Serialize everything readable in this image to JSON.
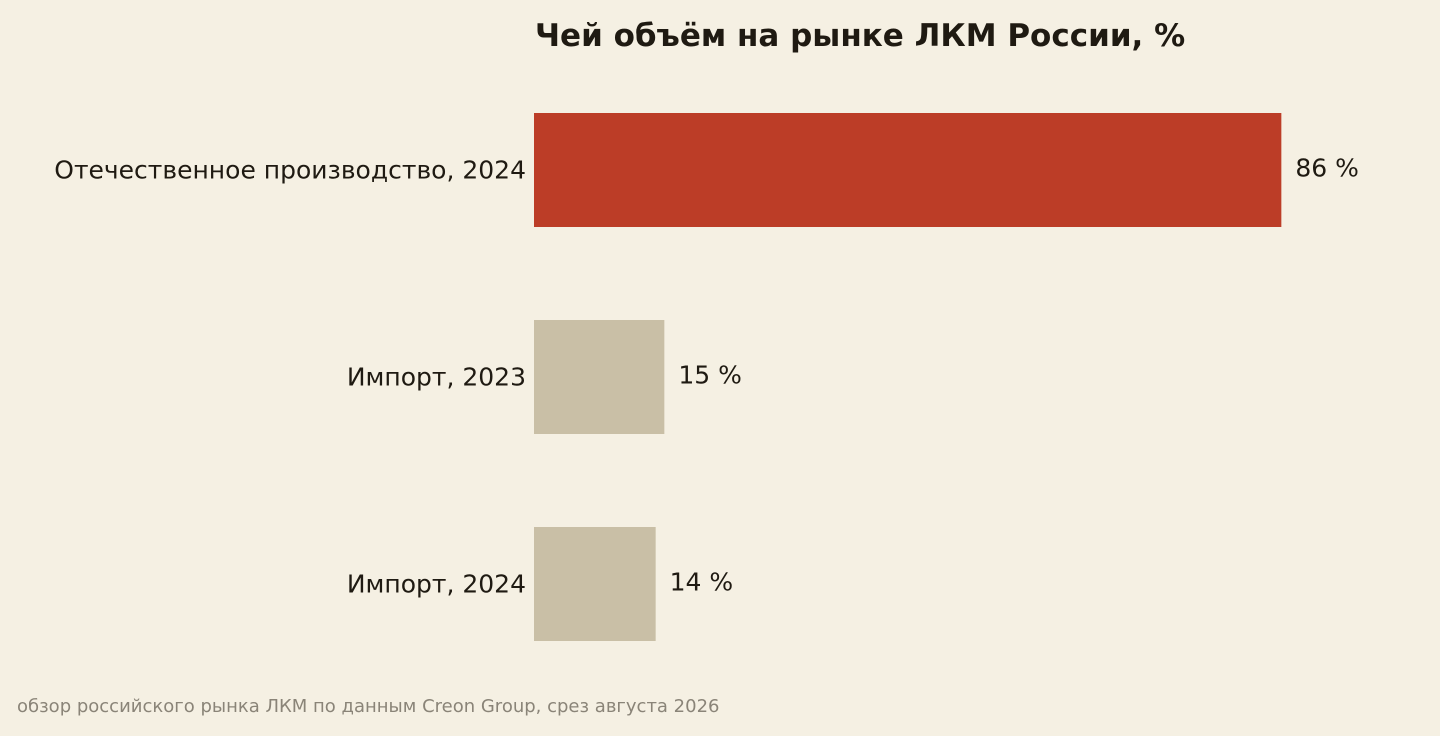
{
  "chart_data": {
    "type": "bar",
    "orientation": "horizontal",
    "title": "Чей объём на рынке ЛКМ России, %",
    "categories": [
      "Отечественное производство, 2024",
      "Импорт, 2023",
      "Импорт, 2024"
    ],
    "values": [
      86,
      15,
      14
    ],
    "value_labels": [
      "86 %",
      "15 %",
      "14 %"
    ],
    "colors": [
      "#bc3d27",
      "#c9bfa6",
      "#c9bfa6"
    ],
    "xlim": [
      0,
      100
    ],
    "grid": false,
    "axes_visible": false,
    "legend": "none"
  },
  "footnote": "обзор российского рынка ЛКМ по данным Creon Group, срез августа 2026",
  "colors": {
    "background": "#f5f0e3",
    "text": "#1f1a12",
    "footnote": "#8a8478",
    "highlight": "#bc3d27",
    "muted": "#c9bfa6"
  }
}
